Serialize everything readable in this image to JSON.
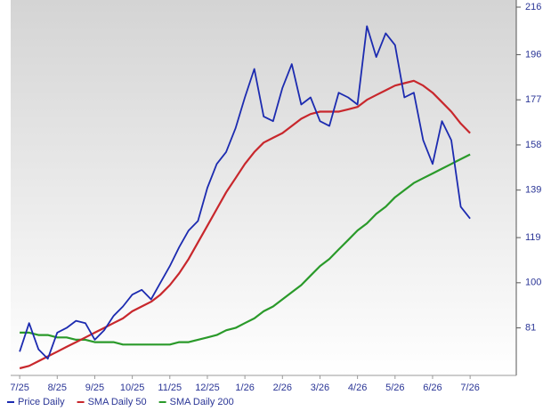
{
  "chart_data": {
    "type": "line",
    "x": [
      0,
      0.25,
      0.5,
      0.75,
      1,
      1.25,
      1.5,
      1.75,
      2,
      2.25,
      2.5,
      2.75,
      3,
      3.25,
      3.5,
      3.75,
      4,
      4.25,
      4.5,
      4.75,
      5,
      5.25,
      5.5,
      5.75,
      6,
      6.25,
      6.5,
      6.75,
      7,
      7.25,
      7.5,
      7.75,
      8,
      8.25,
      8.5,
      8.75,
      9,
      9.25,
      9.5,
      9.75,
      10,
      10.25,
      10.5,
      10.75,
      11,
      11.25,
      11.5,
      11.75,
      12
    ],
    "series": [
      {
        "name": "Price Daily",
        "color": "#1c2bb0",
        "values": [
          71,
          83,
          72,
          68,
          79,
          81,
          84,
          83,
          76,
          80,
          86,
          90,
          95,
          97,
          93,
          100,
          107,
          115,
          122,
          126,
          140,
          150,
          155,
          165,
          178,
          190,
          170,
          168,
          182,
          192,
          175,
          178,
          168,
          166,
          180,
          178,
          175,
          208,
          195,
          205,
          200,
          178,
          180,
          160,
          150,
          168,
          160,
          132,
          127
        ]
      },
      {
        "name": "SMA Daily 50",
        "color": "#c8272c",
        "values": [
          64,
          65,
          67,
          69,
          71,
          73,
          75,
          77,
          79,
          81,
          83,
          85,
          88,
          90,
          92,
          95,
          99,
          104,
          110,
          117,
          124,
          131,
          138,
          144,
          150,
          155,
          159,
          161,
          163,
          166,
          169,
          171,
          172,
          172,
          172,
          173,
          174,
          177,
          179,
          181,
          183,
          184,
          185,
          183,
          180,
          176,
          172,
          167,
          163
        ]
      },
      {
        "name": "SMA Daily 200",
        "color": "#2a9a2a",
        "values": [
          79,
          79,
          78,
          78,
          77,
          77,
          76,
          76,
          75,
          75,
          75,
          74,
          74,
          74,
          74,
          74,
          74,
          75,
          75,
          76,
          77,
          78,
          80,
          81,
          83,
          85,
          88,
          90,
          93,
          96,
          99,
          103,
          107,
          110,
          114,
          118,
          122,
          125,
          129,
          132,
          136,
          139,
          142,
          144,
          146,
          148,
          150,
          152,
          154
        ]
      }
    ],
    "xlim": [
      -0.24,
      13.23
    ],
    "xticks": [
      {
        "value": 0,
        "label": "7/25"
      },
      {
        "value": 1,
        "label": "8/25"
      },
      {
        "value": 2,
        "label": "9/25"
      },
      {
        "value": 3,
        "label": "10/25"
      },
      {
        "value": 4,
        "label": "11/25"
      },
      {
        "value": 5,
        "label": "12/25"
      },
      {
        "value": 6,
        "label": "1/26"
      },
      {
        "value": 7,
        "label": "2/26"
      },
      {
        "value": 8,
        "label": "3/26"
      },
      {
        "value": 9,
        "label": "4/26"
      },
      {
        "value": 10,
        "label": "5/26"
      },
      {
        "value": 11,
        "label": "6/26"
      },
      {
        "value": 12,
        "label": "7/26"
      }
    ],
    "ylim": [
      61,
      219
    ],
    "yticks": [
      81,
      100,
      119,
      139,
      158,
      177,
      196,
      216
    ],
    "legend": "bottom"
  }
}
